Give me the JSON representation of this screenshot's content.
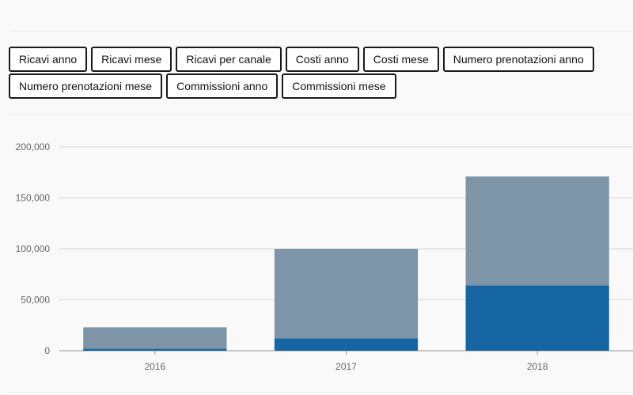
{
  "tabs": [
    {
      "label": "Ricavi anno"
    },
    {
      "label": "Ricavi mese"
    },
    {
      "label": "Ricavi per canale"
    },
    {
      "label": "Costi anno"
    },
    {
      "label": "Costi mese"
    },
    {
      "label": "Numero prenotazioni anno"
    },
    {
      "label": "Numero prenotazioni mese"
    },
    {
      "label": "Commissioni anno"
    },
    {
      "label": "Commissioni mese"
    }
  ],
  "colors": {
    "series_dark": "#1666a4",
    "series_light": "#7d95a6",
    "grid": "#d8d8d8",
    "axis": "#999999"
  },
  "chart_data": {
    "type": "bar",
    "stacked": true,
    "categories": [
      "2016",
      "2017",
      "2018"
    ],
    "series": [
      {
        "values": [
          2000,
          12000,
          64000
        ],
        "color": "#1666a4"
      },
      {
        "values": [
          21000,
          88000,
          107000
        ],
        "color": "#7d95a6"
      }
    ],
    "ylim": [
      0,
      200000
    ],
    "yticks": [
      0,
      50000,
      100000,
      150000,
      200000
    ],
    "ytick_labels": [
      "0",
      "50,000",
      "100,000",
      "150,000",
      "200,000"
    ],
    "grid": true,
    "legend": "none",
    "title": "",
    "xlabel": "",
    "ylabel": ""
  }
}
